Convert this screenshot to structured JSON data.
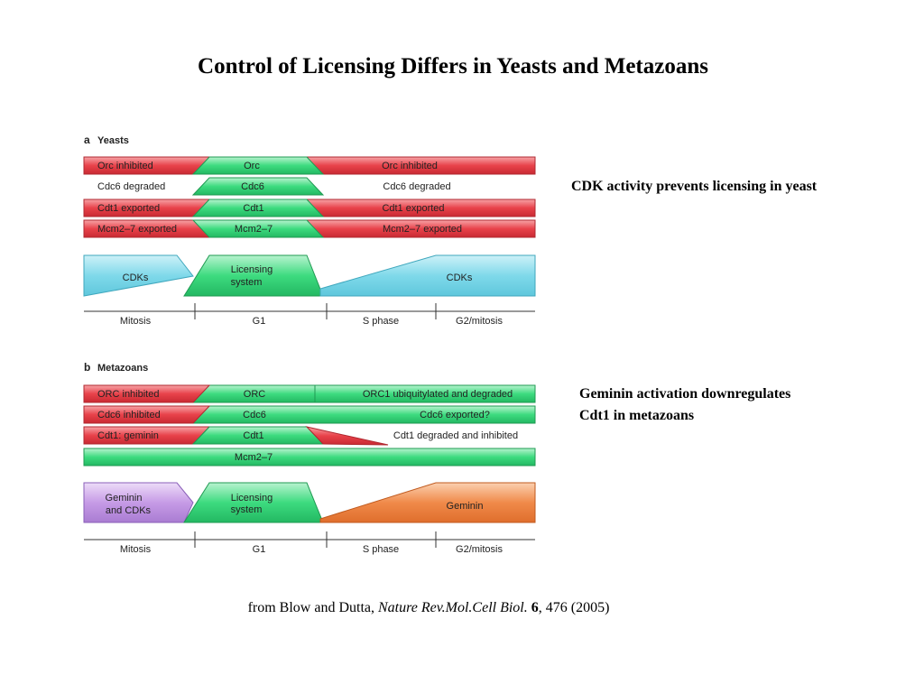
{
  "slide": {
    "title": "Control of Licensing Differs in Yeasts and Metazoans"
  },
  "panel_a": {
    "letter": "a",
    "heading": "Yeasts",
    "rows": [
      {
        "left": "Orc inhibited",
        "middle": "Orc",
        "right": "Orc inhibited"
      },
      {
        "left": "Cdc6 degraded",
        "middle": "Cdc6",
        "right": "Cdc6 degraded"
      },
      {
        "left": "Cdt1 exported",
        "middle": "Cdt1",
        "right": "Cdt1 exported"
      },
      {
        "left": "Mcm2–7 exported",
        "middle": "Mcm2–7",
        "right": "Mcm2–7 exported"
      }
    ],
    "activity": {
      "left": "CDKs",
      "middle_line1": "Licensing",
      "middle_line2": "system",
      "right": "CDKs"
    },
    "phases": [
      "Mitosis",
      "G1",
      "S phase",
      "G2/mitosis"
    ]
  },
  "panel_b": {
    "letter": "b",
    "heading": "Metazoans",
    "rows": [
      {
        "left": "ORC inhibited",
        "middle": "ORC",
        "right": "ORC1 ubiquitylated and degraded"
      },
      {
        "left": "Cdc6 inhibited",
        "middle": "Cdc6",
        "right": "Cdc6 exported?"
      },
      {
        "left": "Cdt1: geminin",
        "middle": "Cdt1",
        "right": "Cdt1 degraded and inhibited"
      },
      {
        "middle": "Mcm2–7"
      }
    ],
    "activity": {
      "left_line1": "Geminin",
      "left_line2": "and CDKs",
      "middle_line1": "Licensing",
      "middle_line2": "system",
      "right": "Geminin"
    },
    "phases": [
      "Mitosis",
      "G1",
      "S phase",
      "G2/mitosis"
    ]
  },
  "notes": {
    "yeast": "CDK activity prevents licensing in yeast",
    "metazoan_line1": "Geminin activation downregulates",
    "metazoan_line2": "Cdt1 in metazoans"
  },
  "citation": {
    "prefix": "from Blow and Dutta, ",
    "journal": "Nature Rev.Mol.Cell Biol.",
    "volume": "6",
    "pages": ", 476 (2005)"
  },
  "colors": {
    "inhibited_red": "#e8424a",
    "licensing_green": "#3ddb7f",
    "cdk_cyan": "#7fd9ea",
    "geminin_cdk_purple": "#c69be6",
    "geminin_orange": "#f08a4a"
  }
}
